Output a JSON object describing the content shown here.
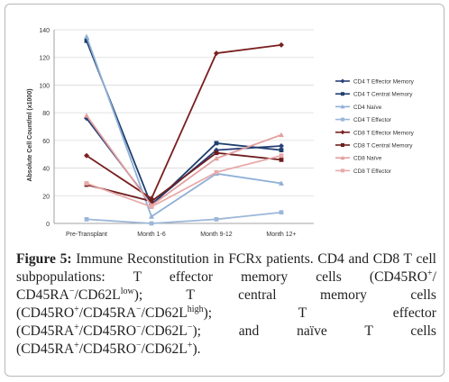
{
  "chart_data": {
    "type": "line",
    "ylabel": "Absolute Cell Count/ml (x1000)",
    "xlabel": "",
    "categories": [
      "Pre-Transplant",
      "Month 1-6",
      "Month 9-12",
      "Month 12+"
    ],
    "ylim": [
      0,
      140
    ],
    "yticks": [
      0,
      20,
      40,
      60,
      80,
      100,
      120,
      140
    ],
    "grid": true,
    "legend_position": "right",
    "series": [
      {
        "name": "CD4 T Effector  Memory",
        "color": "#2a3f78",
        "marker": "diamond",
        "values": [
          76,
          14,
          53,
          56
        ]
      },
      {
        "name": "CD4 T Central Memory",
        "color": "#1f3f6e",
        "marker": "square",
        "values": [
          132,
          13,
          58,
          53
        ]
      },
      {
        "name": "CD4 Naïve",
        "color": "#8fb0d6",
        "marker": "triangle",
        "values": [
          135,
          5,
          36,
          29
        ]
      },
      {
        "name": "CD4 T Effector",
        "color": "#9cb7d8",
        "marker": "square",
        "values": [
          3,
          0,
          3,
          8
        ]
      },
      {
        "name": "CD8 T Effector Memory",
        "color": "#7a1f1f",
        "marker": "diamond",
        "values": [
          49,
          18,
          123,
          129
        ]
      },
      {
        "name": "CD8 T Central Memory",
        "color": "#6e1d1d",
        "marker": "square",
        "values": [
          28,
          16,
          51,
          46
        ]
      },
      {
        "name": "CD8 Naïve",
        "color": "#e3a0a0",
        "marker": "triangle",
        "values": [
          78,
          13,
          47,
          64
        ]
      },
      {
        "name": "CD8 T Effector",
        "color": "#e8aaaa",
        "marker": "square",
        "values": [
          29,
          12,
          37,
          49
        ]
      }
    ]
  },
  "caption": {
    "label": "Figure 5:",
    "p1": " Immune Reconstitution in FCRx patients. CD4 and CD8 T cell subpopulations: T effector memory cells (CD45RO",
    "s1": "+",
    "p2": "/ CD45RA",
    "s2": "−",
    "p3": "/CD62L",
    "s3": "low",
    "p4": "); T central memory cells (CD45RO",
    "s4": "+",
    "p5": "/CD45RA",
    "s5": "−",
    "p6": "/CD62L",
    "s6": "high",
    "p7": "); T effector (CD45RA",
    "s7": "+",
    "p8": "/CD45RO",
    "s8": "−",
    "p9": "/CD62L",
    "s9": "−",
    "p10": "); and naïve T cells (CD45RA",
    "s10": "+",
    "p11": "/CD45RO",
    "s11": "−",
    "p12": "/CD62L",
    "s12": "+",
    "p13": ")."
  }
}
